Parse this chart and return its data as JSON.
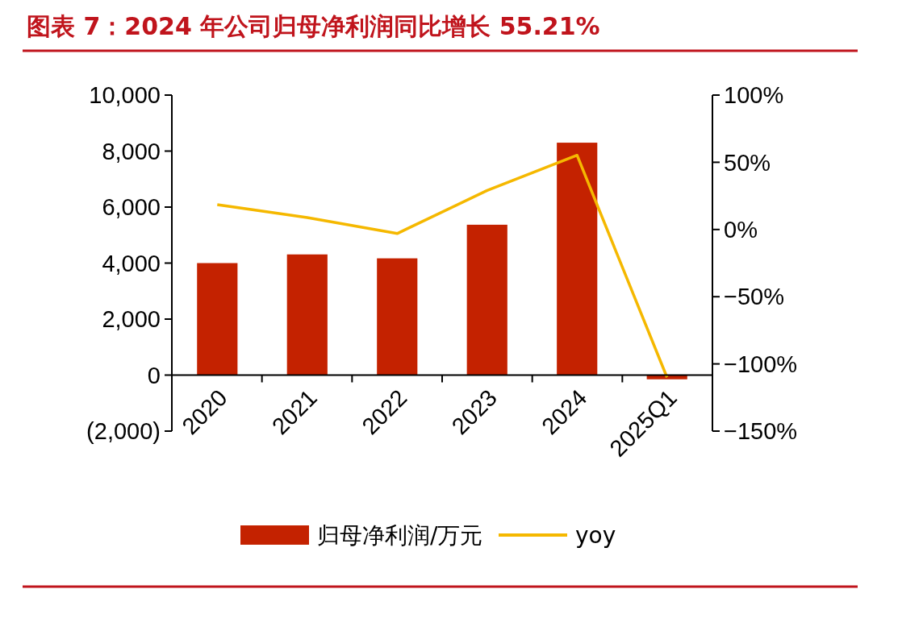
{
  "chart_data": {
    "type": "bar",
    "title": "图表 7：2024 年公司归母净利润同比增长 55.21%",
    "categories": [
      "2020",
      "2021",
      "2022",
      "2023",
      "2024",
      "2025Q1"
    ],
    "series": [
      {
        "name": "归母净利润/万元",
        "color": "#c42200",
        "values": [
          4000,
          4310,
          4170,
          5370,
          8300,
          -150
        ]
      },
      {
        "name": "yoy",
        "type": "line",
        "axis": "y2",
        "color": "#f5b800",
        "values": [
          18.5,
          8.9,
          -3,
          29,
          55.21,
          -110
        ]
      }
    ],
    "ylim": [
      -2000,
      10000
    ],
    "yticks": [
      {
        "value": -2000,
        "label": "(2,000)"
      },
      0,
      {
        "value": 2000,
        "label": "2,000"
      },
      {
        "value": 4000,
        "label": "4,000"
      },
      {
        "value": 6000,
        "label": "6,000"
      },
      {
        "value": 8000,
        "label": "8,000"
      },
      {
        "value": 10000,
        "label": "10,000"
      }
    ],
    "y2lim": [
      -150,
      100
    ],
    "y2ticks": [
      {
        "value": -150,
        "label": "−150%"
      },
      {
        "value": -100,
        "label": "−100%"
      },
      {
        "value": -50,
        "label": "−50%"
      },
      {
        "value": 0,
        "label": "0%"
      },
      {
        "value": 50,
        "label": "50%"
      },
      {
        "value": 100,
        "label": "100%"
      }
    ],
    "legend": "bottom",
    "grid": false
  }
}
